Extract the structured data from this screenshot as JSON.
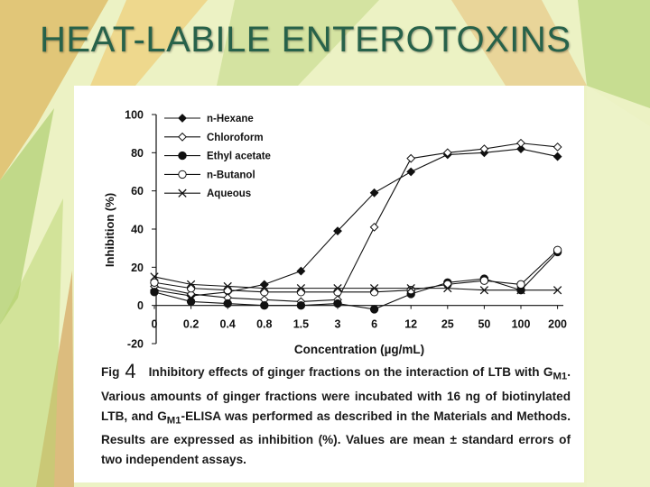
{
  "slide": {
    "title": "HEAT-LABILE ENTEROTOXINS"
  },
  "caption": {
    "label": "Fig",
    "number": "4",
    "text_1": "Inhibitory effects of ginger fractions on the interaction of LTB with G",
    "sub_1": "M1",
    "text_2": ". Various amounts of ginger fractions were incubated with 16 ng of biotinylated LTB, and G",
    "sub_2": "M1",
    "text_3": "-ELISA was performed as described in the Materials and Methods. Results are expressed as inhibition (%). Values are mean ± standard errors of two independent assays."
  },
  "chart_data": {
    "type": "line",
    "xlabel": "Concentration (µg/mL)",
    "ylabel": "Inhibition (%)",
    "categories": [
      "0",
      "0.2",
      "0.4",
      "0.8",
      "1.5",
      "3",
      "6",
      "12",
      "25",
      "50",
      "100",
      "200"
    ],
    "ylim": [
      -20,
      100
    ],
    "yticks": [
      -20,
      0,
      20,
      40,
      60,
      80,
      100
    ],
    "grid": false,
    "legend_position": "top-left",
    "series": [
      {
        "name": "n-Hexane",
        "marker": "diamond-filled",
        "values": [
          8,
          5,
          7,
          11,
          18,
          39,
          59,
          70,
          79,
          80,
          82,
          78
        ]
      },
      {
        "name": "Chloroform",
        "marker": "diamond-open",
        "values": [
          10,
          6,
          4,
          3,
          2,
          3,
          41,
          77,
          80,
          82,
          85,
          83
        ]
      },
      {
        "name": "Ethyl acetate",
        "marker": "circle-filled",
        "values": [
          7,
          2,
          1,
          0,
          0,
          1,
          -2,
          6,
          12,
          14,
          8,
          28
        ]
      },
      {
        "name": "n-Butanol",
        "marker": "circle-open",
        "values": [
          12,
          9,
          8,
          7,
          7,
          7,
          7,
          8,
          11,
          13,
          11,
          29
        ]
      },
      {
        "name": "Aqueous",
        "marker": "cross",
        "values": [
          15,
          11,
          10,
          9,
          9,
          9,
          9,
          9,
          9,
          8,
          8,
          8
        ]
      }
    ]
  }
}
